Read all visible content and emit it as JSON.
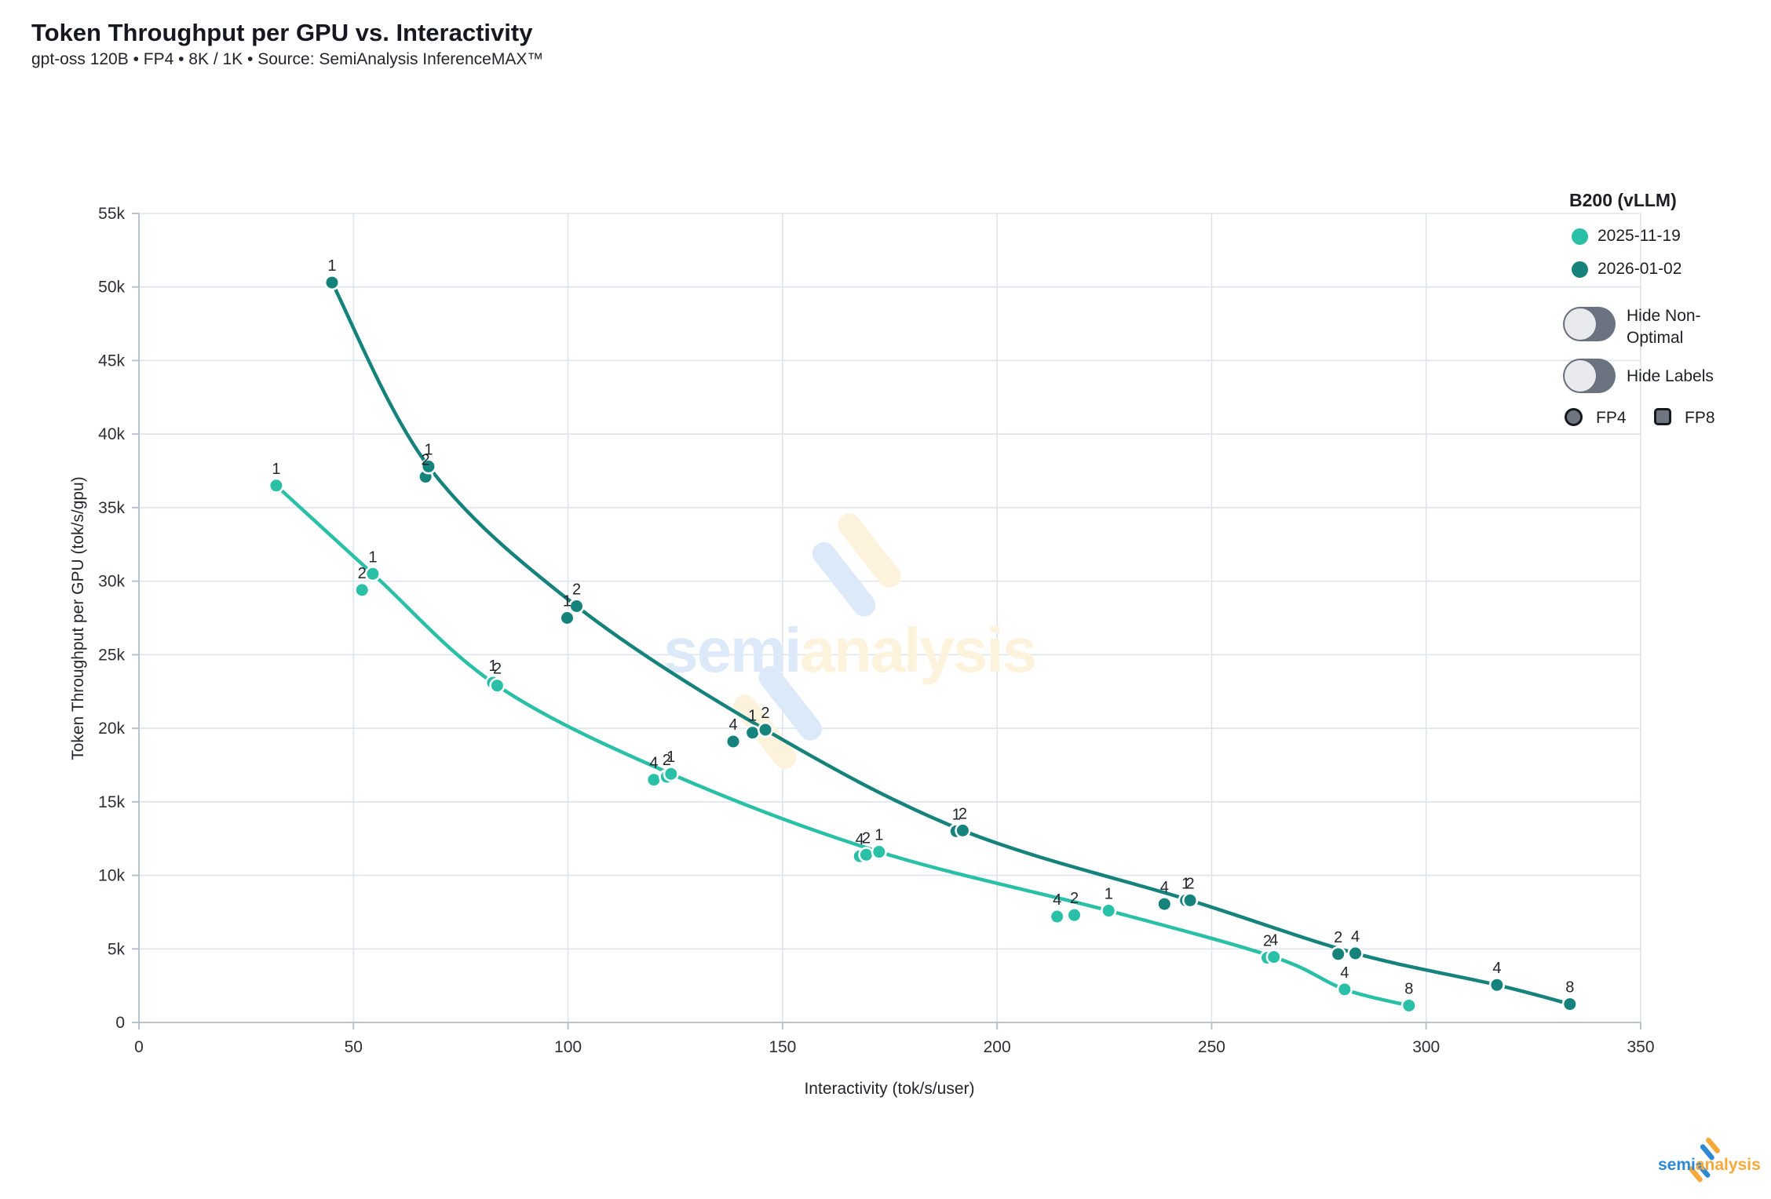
{
  "header": {
    "title": "Token Throughput per GPU vs. Interactivity",
    "subtitle": "gpt-oss 120B • FP4 • 8K / 1K • Source: SemiAnalysis InferenceMAX™"
  },
  "chart_data": {
    "type": "scatter",
    "title": "Token Throughput per GPU vs. Interactivity",
    "xlabel": "Interactivity (tok/s/user)",
    "ylabel": "Token Throughput per GPU (tok/s/gpu)",
    "xlim": [
      0,
      350
    ],
    "ylim": [
      0,
      55000
    ],
    "grid": true,
    "x_ticks": [
      {
        "v": 0,
        "label": "0"
      },
      {
        "v": 50,
        "label": "50"
      },
      {
        "v": 100,
        "label": "100"
      },
      {
        "v": 150,
        "label": "150"
      },
      {
        "v": 200,
        "label": "200"
      },
      {
        "v": 250,
        "label": "250"
      },
      {
        "v": 300,
        "label": "300"
      },
      {
        "v": 350,
        "label": "350"
      }
    ],
    "y_ticks": [
      {
        "v": 0,
        "label": "0"
      },
      {
        "v": 5000,
        "label": "5k"
      },
      {
        "v": 10000,
        "label": "10k"
      },
      {
        "v": 15000,
        "label": "15k"
      },
      {
        "v": 20000,
        "label": "20k"
      },
      {
        "v": 25000,
        "label": "25k"
      },
      {
        "v": 30000,
        "label": "30k"
      },
      {
        "v": 35000,
        "label": "35k"
      },
      {
        "v": 40000,
        "label": "40k"
      },
      {
        "v": 45000,
        "label": "45k"
      },
      {
        "v": 50000,
        "label": "50k"
      },
      {
        "v": 55000,
        "label": "55k"
      }
    ],
    "series": [
      {
        "name": "2025-11-19",
        "color": "#2abfa7",
        "marker": "circle",
        "points": [
          {
            "x": 32,
            "y": 36500,
            "label": "1",
            "frontier": true
          },
          {
            "x": 52,
            "y": 29400,
            "label": "2",
            "frontier": false
          },
          {
            "x": 54.5,
            "y": 30500,
            "label": "1",
            "frontier": true
          },
          {
            "x": 82.5,
            "y": 23100,
            "label": "1",
            "frontier": false
          },
          {
            "x": 83.5,
            "y": 22900,
            "label": "2",
            "frontier": true
          },
          {
            "x": 120,
            "y": 16500,
            "label": "4",
            "frontier": false
          },
          {
            "x": 123,
            "y": 16700,
            "label": "2",
            "frontier": false
          },
          {
            "x": 124,
            "y": 16900,
            "label": "1",
            "frontier": true
          },
          {
            "x": 168,
            "y": 11300,
            "label": "4",
            "frontier": false
          },
          {
            "x": 169.5,
            "y": 11400,
            "label": "2",
            "frontier": false
          },
          {
            "x": 172.5,
            "y": 11600,
            "label": "1",
            "frontier": true
          },
          {
            "x": 214,
            "y": 7200,
            "label": "4",
            "frontier": false
          },
          {
            "x": 218,
            "y": 7300,
            "label": "2",
            "frontier": false
          },
          {
            "x": 226,
            "y": 7600,
            "label": "1",
            "frontier": true
          },
          {
            "x": 263,
            "y": 4400,
            "label": "2",
            "frontier": false
          },
          {
            "x": 264.5,
            "y": 4450,
            "label": "4",
            "frontier": true
          },
          {
            "x": 281,
            "y": 2250,
            "label": "4",
            "frontier": true
          },
          {
            "x": 296,
            "y": 1150,
            "label": "8",
            "frontier": true
          }
        ]
      },
      {
        "name": "2026-01-02",
        "color": "#15837c",
        "marker": "circle",
        "points": [
          {
            "x": 45,
            "y": 50300,
            "label": "1",
            "frontier": true
          },
          {
            "x": 66.8,
            "y": 37100,
            "label": "2",
            "frontier": false
          },
          {
            "x": 67.5,
            "y": 37800,
            "label": "1",
            "frontier": true
          },
          {
            "x": 99.8,
            "y": 27500,
            "label": "1",
            "frontier": false
          },
          {
            "x": 102,
            "y": 28300,
            "label": "2",
            "frontier": true
          },
          {
            "x": 138.5,
            "y": 19100,
            "label": "4",
            "frontier": false
          },
          {
            "x": 143,
            "y": 19700,
            "label": "1",
            "frontier": false
          },
          {
            "x": 146,
            "y": 19900,
            "label": "2",
            "frontier": true
          },
          {
            "x": 190.5,
            "y": 13000,
            "label": "1",
            "frontier": false
          },
          {
            "x": 192,
            "y": 13050,
            "label": "2",
            "frontier": true
          },
          {
            "x": 239,
            "y": 8050,
            "label": "4",
            "frontier": false
          },
          {
            "x": 244,
            "y": 8300,
            "label": "1",
            "frontier": false
          },
          {
            "x": 245,
            "y": 8300,
            "label": "2",
            "frontier": true
          },
          {
            "x": 279.5,
            "y": 4650,
            "label": "2",
            "frontier": false
          },
          {
            "x": 283.5,
            "y": 4700,
            "label": "4",
            "frontier": true
          },
          {
            "x": 316.5,
            "y": 2550,
            "label": "4",
            "frontier": true
          },
          {
            "x": 333.5,
            "y": 1250,
            "label": "8",
            "frontier": true
          }
        ]
      }
    ]
  },
  "legend": {
    "title": "B200 (vLLM)",
    "items": [
      {
        "label": "2025-11-19",
        "color": "#2abfa7"
      },
      {
        "label": "2026-01-02",
        "color": "#15837c"
      }
    ],
    "toggles": [
      {
        "label": "Hide Non-Optimal",
        "on": false
      },
      {
        "label": "Hide Labels",
        "on": false
      }
    ],
    "shapes": [
      {
        "label": "FP4",
        "shape": "circle"
      },
      {
        "label": "FP8",
        "shape": "square"
      }
    ],
    "shape_color": "#6e7480"
  },
  "watermark": {
    "semi": "semi",
    "analysis": "analysis",
    "blue": "#dbe9f8",
    "yellow": "#fdf3dd"
  },
  "logo": {
    "semi": "semi",
    "analysis": "analysis",
    "blue": "#2f88d4",
    "orange": "#f5a93b"
  }
}
